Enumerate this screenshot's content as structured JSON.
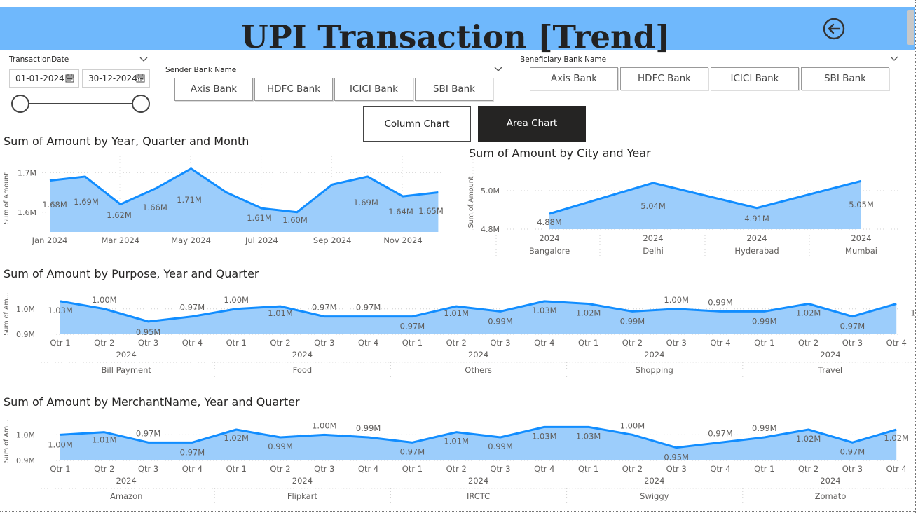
{
  "header": {
    "title": "UPI Transaction [Trend]",
    "background": "#6fb8fc",
    "back_icon": "back-arrow-icon"
  },
  "filters": {
    "transaction_date": {
      "title": "TransactionDate",
      "start": "01-01-2024",
      "end": "30-12-2024",
      "calendar_icon": "calendar-icon"
    },
    "sender_bank": {
      "title": "Sender Bank Name",
      "options": [
        "Axis Bank",
        "HDFC Bank",
        "ICICI Bank",
        "SBI Bank"
      ]
    },
    "beneficiary_bank": {
      "title": "Beneficiary Bank Name",
      "options": [
        "Axis Bank",
        "HDFC Bank",
        "ICICI Bank",
        "SBI Bank"
      ]
    }
  },
  "toggle": {
    "column_label": "Column Chart",
    "area_label": "Area Chart",
    "active": "Area Chart"
  },
  "colors": {
    "line": "#118dff",
    "area": "#9ccdfb",
    "active_button": "#252423"
  },
  "chart_data": [
    {
      "id": "month",
      "type": "area",
      "title": "Sum of Amount by Year, Quarter and Month",
      "ylabel": "Sum of Amount",
      "yticks": [
        "1.7M",
        "1.6M"
      ],
      "ytick_values": [
        1.7,
        1.6
      ],
      "ylim": [
        1.55,
        1.72
      ],
      "xtick_labels": [
        "Jan 2024",
        "Mar 2024",
        "May 2024",
        "Jul 2024",
        "Sep 2024",
        "Nov 2024"
      ],
      "x": [
        "Jan 2024",
        "Feb 2024",
        "Mar 2024",
        "Apr 2024",
        "May 2024",
        "Jun 2024",
        "Jul 2024",
        "Aug 2024",
        "Sep 2024",
        "Oct 2024",
        "Nov 2024",
        "Dec 2024"
      ],
      "values": [
        1.68,
        1.69,
        1.62,
        1.66,
        1.71,
        1.65,
        1.61,
        1.6,
        1.67,
        1.69,
        1.64,
        1.65
      ],
      "labels": [
        "1.68M",
        "1.69M",
        "1.62M",
        "1.66M",
        "1.71M",
        "",
        "1.61M",
        "1.60M",
        "",
        "1.69M",
        "1.64M",
        "1.65M"
      ],
      "grid": true
    },
    {
      "id": "city",
      "type": "area",
      "title": "Sum of Amount by City and Year",
      "ylabel": "Sum of Amount",
      "yticks": [
        "5.0M",
        "4.8M"
      ],
      "ytick_values": [
        5.0,
        4.8
      ],
      "ylim": [
        4.8,
        5.08
      ],
      "year": "2024",
      "categories": [
        "Bangalore",
        "Delhi",
        "Hyderabad",
        "Mumbai"
      ],
      "values": [
        4.88,
        5.04,
        4.91,
        5.05
      ],
      "labels": [
        "4.88M",
        "5.04M",
        "4.91M",
        "5.05M"
      ],
      "grid": true
    },
    {
      "id": "purpose",
      "type": "area",
      "title": "Sum of Amount by Purpose, Year and Quarter",
      "ylabel": "Sum of Am...",
      "yticks": [
        "1.0M",
        "0.9M"
      ],
      "ytick_values": [
        1.0,
        0.9
      ],
      "ylim": [
        0.9,
        1.06
      ],
      "year": "2024",
      "quarters": [
        "Qtr 1",
        "Qtr 2",
        "Qtr 3",
        "Qtr 4"
      ],
      "groups": [
        "Bill Payment",
        "Food",
        "Others",
        "Shopping",
        "Travel"
      ],
      "values": [
        1.03,
        1.0,
        0.95,
        0.97,
        1.0,
        1.01,
        0.97,
        0.97,
        0.97,
        1.01,
        0.99,
        1.03,
        1.02,
        0.99,
        1.0,
        0.99,
        0.99,
        1.02,
        0.97,
        1.02
      ],
      "labels": [
        "1.03M",
        "1.00M",
        "0.95M",
        "0.97M",
        "1.00M",
        "1.01M",
        "0.97M",
        "0.97M",
        "0.97M",
        "1.01M",
        "0.99M",
        "1.03M",
        "1.02M",
        "0.99M",
        "1.00M",
        "0.99M",
        "0.99M",
        "1.02M",
        "0.97M",
        "1.02M"
      ],
      "grid": true
    },
    {
      "id": "merchant",
      "type": "area",
      "title": "Sum of Amount by MerchantName, Year and Quarter",
      "ylabel": "Sum of Am...",
      "yticks": [
        "1.0M",
        "0.9M"
      ],
      "ytick_values": [
        1.0,
        0.9
      ],
      "ylim": [
        0.9,
        1.05
      ],
      "year": "2024",
      "quarters": [
        "Qtr 1",
        "Qtr 2",
        "Qtr 3",
        "Qtr 4"
      ],
      "groups": [
        "Amazon",
        "Flipkart",
        "IRCTC",
        "Swiggy",
        "Zomato"
      ],
      "values": [
        1.0,
        1.01,
        0.97,
        0.97,
        1.02,
        0.99,
        1.0,
        0.99,
        0.97,
        1.01,
        0.99,
        1.03,
        1.03,
        1.0,
        0.95,
        0.97,
        0.99,
        1.02,
        0.97,
        1.02
      ],
      "labels": [
        "1.00M",
        "1.01M",
        "0.97M",
        "0.97M",
        "1.02M",
        "0.99M",
        "1.00M",
        "0.99M",
        "0.97M",
        "1.01M",
        "0.99M",
        "1.03M",
        "1.03M",
        "1.00M",
        "0.95M",
        "0.97M",
        "0.99M",
        "1.02M",
        "0.97M",
        "1.02M"
      ],
      "grid": true
    }
  ]
}
